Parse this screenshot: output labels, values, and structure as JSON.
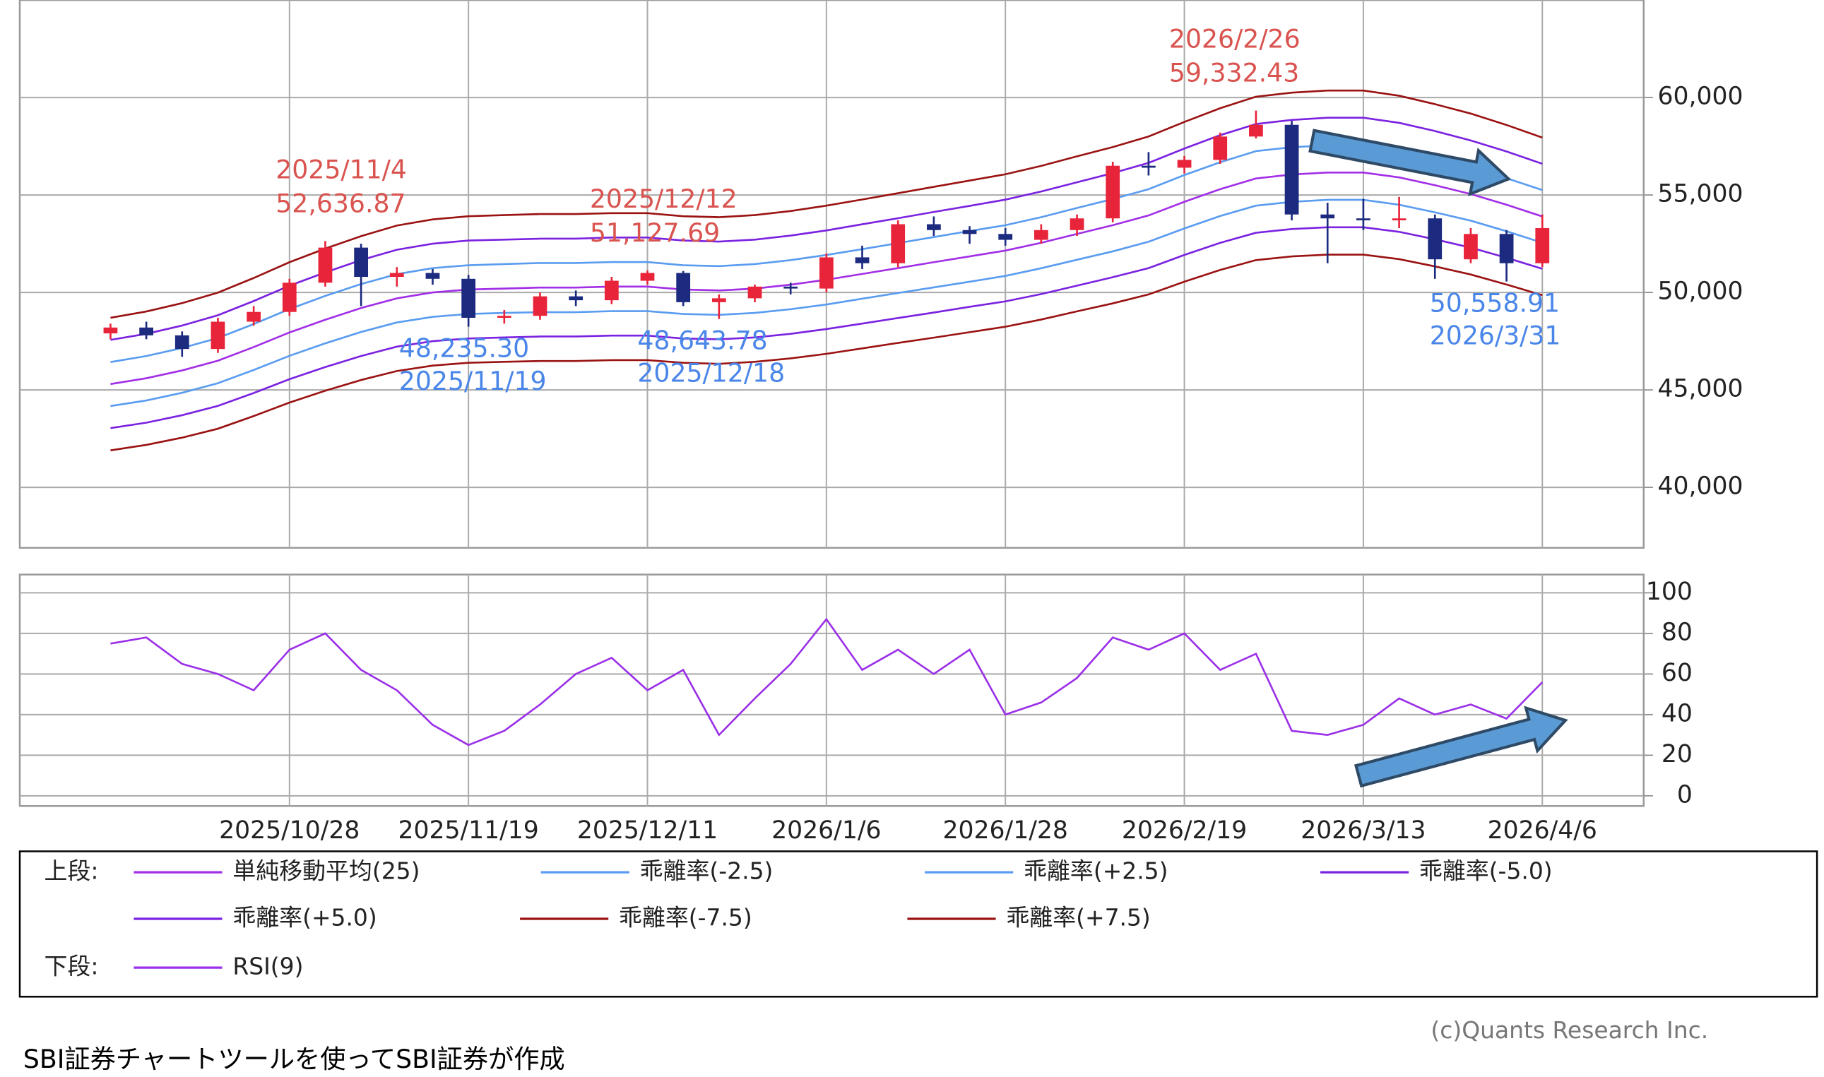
{
  "chart_data": [
    {
      "type": "candlestick",
      "legend_label": "上段:",
      "ylim": [
        36900,
        65000
      ],
      "yticks": [
        {
          "value": 40000,
          "label": "40,000"
        },
        {
          "value": 45000,
          "label": "45,000"
        },
        {
          "value": 50000,
          "label": "50,000"
        },
        {
          "value": 55000,
          "label": "55,000"
        },
        {
          "value": 60000,
          "label": "60,000"
        }
      ],
      "grid": true,
      "up_color": "#e8243a",
      "down_color": "#1c2b7f",
      "open": [
        47900,
        48200,
        47800,
        47100,
        48500,
        49000,
        50500,
        52300,
        50800,
        51000,
        50700,
        48700,
        48800,
        49800,
        49600,
        50600,
        51000,
        49500,
        49700,
        50300,
        50200,
        51800,
        51500,
        53500,
        53200,
        53000,
        52700,
        53200,
        53800,
        56500,
        56400,
        56800,
        58000,
        58600,
        54000,
        53800,
        53700,
        53800,
        51700,
        53000,
        51500
      ],
      "high": [
        48400,
        48500,
        48000,
        48700,
        49300,
        50700,
        52640,
        52500,
        51300,
        51200,
        50900,
        49100,
        50000,
        50100,
        50800,
        51130,
        51100,
        49900,
        50400,
        50500,
        52000,
        52400,
        53700,
        53900,
        53400,
        53300,
        53500,
        54000,
        56700,
        57200,
        57000,
        58200,
        59330,
        58800,
        54600,
        54800,
        54900,
        54000,
        53300,
        53200,
        54000
      ],
      "low": [
        47600,
        47600,
        46700,
        46900,
        48300,
        48800,
        50300,
        49300,
        50300,
        50400,
        48240,
        48400,
        48600,
        49300,
        49400,
        50400,
        49300,
        48640,
        49500,
        49900,
        50000,
        51200,
        51300,
        52900,
        52500,
        52400,
        52500,
        52900,
        53600,
        56000,
        56100,
        56600,
        57900,
        53700,
        51500,
        53200,
        53300,
        50700,
        51500,
        50560,
        51300
      ],
      "close": [
        48200,
        47800,
        47100,
        48500,
        49000,
        50500,
        52300,
        50800,
        51000,
        50700,
        48700,
        48800,
        49800,
        49600,
        50600,
        51000,
        49500,
        49700,
        50300,
        50200,
        51800,
        51500,
        53500,
        53200,
        53000,
        52700,
        53200,
        53800,
        56500,
        56400,
        56800,
        58000,
        58600,
        54000,
        53800,
        53700,
        53800,
        51700,
        53000,
        51500,
        53300
      ],
      "series": [
        {
          "name": "単純移動平均(25)",
          "color": "#a22ee6",
          "values": [
            45300,
            45600,
            46000,
            46500,
            47200,
            47950,
            48600,
            49200,
            49700,
            50000,
            50150,
            50200,
            50250,
            50250,
            50300,
            50300,
            50150,
            50100,
            50200,
            50400,
            50650,
            50950,
            51250,
            51550,
            51850,
            52150,
            52550,
            53000,
            53450,
            53950,
            54650,
            55300,
            55850,
            56050,
            56150,
            56150,
            55900,
            55500,
            55050,
            54500,
            53900
          ]
        },
        {
          "name": "乖離率(-2.5)",
          "color": "#5a9cf0",
          "values": [
            44170,
            44460,
            44850,
            45340,
            46020,
            46750,
            47390,
            47970,
            48460,
            48750,
            48900,
            48950,
            48990,
            48990,
            49040,
            49040,
            48900,
            48850,
            48950,
            49140,
            49380,
            49680,
            49970,
            50260,
            50550,
            50850,
            51240,
            51680,
            52110,
            52600,
            53280,
            53920,
            54450,
            54650,
            54750,
            54750,
            54500,
            54110,
            53680,
            53140,
            52550
          ]
        },
        {
          "name": "乖離率(+2.5)",
          "color": "#5a9cf0",
          "values": [
            46430,
            46740,
            47150,
            47660,
            48380,
            49150,
            49820,
            50430,
            50940,
            51250,
            51400,
            51460,
            51510,
            51510,
            51560,
            51560,
            51400,
            51350,
            51460,
            51660,
            51920,
            52220,
            52530,
            52840,
            53150,
            53450,
            53860,
            54330,
            54790,
            55300,
            56020,
            56680,
            57250,
            57450,
            57550,
            57550,
            57300,
            56890,
            56430,
            55860,
            55250
          ]
        },
        {
          "name": "乖離率(-5.0)",
          "color": "#7b22e0",
          "values": [
            43040,
            43320,
            43700,
            44180,
            44840,
            45550,
            46170,
            46740,
            47220,
            47500,
            47640,
            47690,
            47740,
            47740,
            47790,
            47790,
            47640,
            47600,
            47690,
            47880,
            48120,
            48400,
            48690,
            48970,
            49260,
            49540,
            49920,
            50350,
            50780,
            51250,
            51920,
            52540,
            53060,
            53250,
            53340,
            53340,
            53110,
            52730,
            52300,
            51780,
            51210
          ]
        },
        {
          "name": "乖離率(+5.0)",
          "color": "#7b22e0",
          "values": [
            47570,
            47880,
            48300,
            48830,
            49560,
            50350,
            51030,
            51660,
            52190,
            52500,
            52660,
            52710,
            52760,
            52760,
            52820,
            52820,
            52660,
            52610,
            52710,
            52920,
            53180,
            53500,
            53810,
            54130,
            54440,
            54760,
            55180,
            55650,
            56120,
            56650,
            57380,
            58070,
            58640,
            58850,
            58960,
            58960,
            58700,
            58280,
            57800,
            57230,
            56600
          ]
        },
        {
          "name": "乖離率(-7.5)",
          "color": "#9a1212",
          "values": [
            41900,
            42180,
            42550,
            43010,
            43660,
            44350,
            44960,
            45510,
            45970,
            46250,
            46390,
            46440,
            46480,
            46480,
            46530,
            46530,
            46390,
            46340,
            46440,
            46620,
            46850,
            47130,
            47410,
            47680,
            47960,
            48240,
            48610,
            49030,
            49440,
            49900,
            50550,
            51150,
            51660,
            51850,
            51940,
            51940,
            51710,
            51340,
            50920,
            50410,
            49860
          ]
        },
        {
          "name": "乖離率(+7.5)",
          "color": "#9a1212",
          "values": [
            48700,
            49020,
            49450,
            49990,
            50740,
            51550,
            52250,
            52890,
            53430,
            53750,
            53910,
            53970,
            54020,
            54020,
            54070,
            54070,
            53910,
            53860,
            53970,
            54180,
            54450,
            54770,
            55090,
            55420,
            55740,
            56060,
            56490,
            56980,
            57460,
            58000,
            58750,
            59450,
            60040,
            60250,
            60360,
            60360,
            60090,
            59660,
            59180,
            58590,
            57940
          ]
        }
      ],
      "annotations": [
        {
          "date": "2025/11/4",
          "value": 52636.87,
          "value_label": "52,636.87",
          "placement": "above",
          "color": "#d9534f"
        },
        {
          "date": "2025/12/12",
          "value": 51127.69,
          "value_label": "51,127.69",
          "placement": "above",
          "color": "#d9534f"
        },
        {
          "date": "2026/2/26",
          "value": 59332.43,
          "value_label": "59,332.43",
          "placement": "above",
          "color": "#d9534f"
        },
        {
          "date": "2025/11/19",
          "value": 48235.3,
          "value_label": "48,235.30",
          "placement": "below",
          "color": "#4a86e8"
        },
        {
          "date": "2025/12/18",
          "value": 48643.78,
          "value_label": "48,643.78",
          "placement": "below",
          "color": "#4a86e8"
        },
        {
          "date": "2026/3/31",
          "value": 50558.91,
          "value_label": "50,558.91",
          "placement": "below",
          "color": "#4a86e8"
        }
      ]
    },
    {
      "type": "line",
      "legend_label": "下段:",
      "categories": [
        null,
        null,
        null,
        null,
        null,
        "2025/10/28",
        null,
        null,
        null,
        null,
        "2025/11/19",
        null,
        null,
        null,
        null,
        "2025/12/11",
        null,
        null,
        null,
        null,
        "2026/1/6",
        null,
        null,
        null,
        null,
        "2026/1/28",
        null,
        null,
        null,
        null,
        "2026/2/19",
        null,
        null,
        null,
        null,
        "2026/3/13",
        null,
        null,
        null,
        null,
        "2026/4/6"
      ],
      "ylim": [
        -5,
        109
      ],
      "yticks": [
        0,
        20,
        40,
        60,
        80,
        100
      ],
      "grid": true,
      "series": [
        {
          "name": "RSI(9)",
          "color": "#9b30e8",
          "values": [
            75,
            78,
            65,
            60,
            52,
            72,
            80,
            62,
            52,
            35,
            25,
            32,
            45,
            60,
            68,
            52,
            62,
            30,
            48,
            65,
            87,
            62,
            72,
            60,
            72,
            40,
            46,
            58,
            78,
            72,
            80,
            62,
            70,
            32,
            30,
            35,
            48,
            40,
            45,
            38,
            56
          ]
        }
      ]
    }
  ],
  "credit": "(c)Quants Research Inc.",
  "note": "SBI証券チャートツールを使ってSBI証券が作成"
}
